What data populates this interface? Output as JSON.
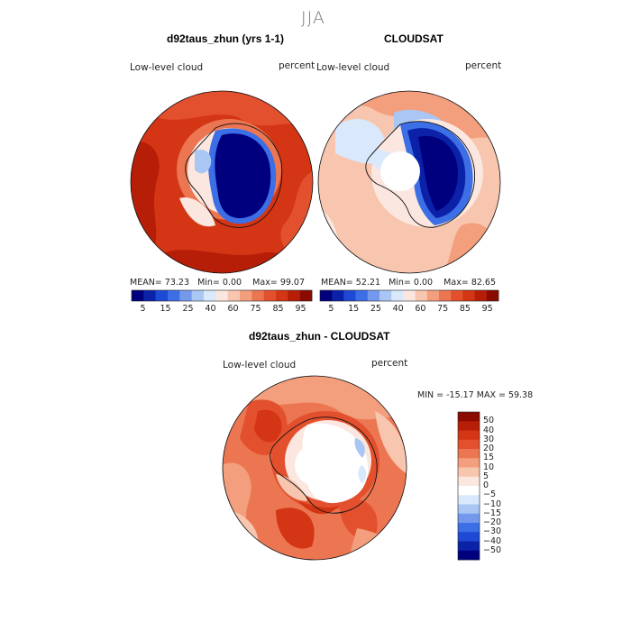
{
  "season": "JJA",
  "left_panel": {
    "title": "d92taus_zhun (yrs 1-1)",
    "field_label": "Low-level cloud",
    "units": "percent",
    "stats": {
      "mean": "73.23",
      "min": "0.00",
      "max": "99.07"
    }
  },
  "right_panel": {
    "title": "CLOUDSAT",
    "field_label": "Low-level cloud",
    "units": "percent",
    "stats": {
      "mean": "52.21",
      "min": "0.00",
      "max": "82.65"
    }
  },
  "stat_labels": {
    "mean": "MEAN=",
    "min": "Min=",
    "max": "Max="
  },
  "top_colorbar": {
    "colors": [
      "#00007f",
      "#0b22a8",
      "#1e49d4",
      "#3c6ee6",
      "#7499ec",
      "#a9c6f4",
      "#d9e8fb",
      "#fbe7df",
      "#f8c6ae",
      "#f39e7c",
      "#ec7652",
      "#e3502e",
      "#d43514",
      "#b71e07",
      "#8a0b01"
    ],
    "tick_labels": [
      "5",
      "15",
      "25",
      "40",
      "60",
      "75",
      "85",
      "95"
    ]
  },
  "diff_panel": {
    "title": "d92taus_zhun - CLOUDSAT",
    "field_label": "Low-level cloud",
    "units": "percent",
    "minmax_text": "MIN = -15.17 MAX =  59.38"
  },
  "diff_colorbar": {
    "colors_top_to_bottom": [
      "#8a0b01",
      "#b71e07",
      "#d43514",
      "#e3502e",
      "#ec7652",
      "#f39e7c",
      "#f8c6ae",
      "#fbe7df",
      "#ffffff",
      "#d9e8fb",
      "#a9c6f4",
      "#7499ec",
      "#3c6ee6",
      "#1e49d4",
      "#0b22a8",
      "#00007f"
    ],
    "tick_labels": [
      "50",
      "40",
      "30",
      "20",
      "15",
      "10",
      "5",
      "0",
      "−5",
      "−10",
      "−15",
      "−20",
      "−30",
      "−40",
      "−50"
    ]
  }
}
